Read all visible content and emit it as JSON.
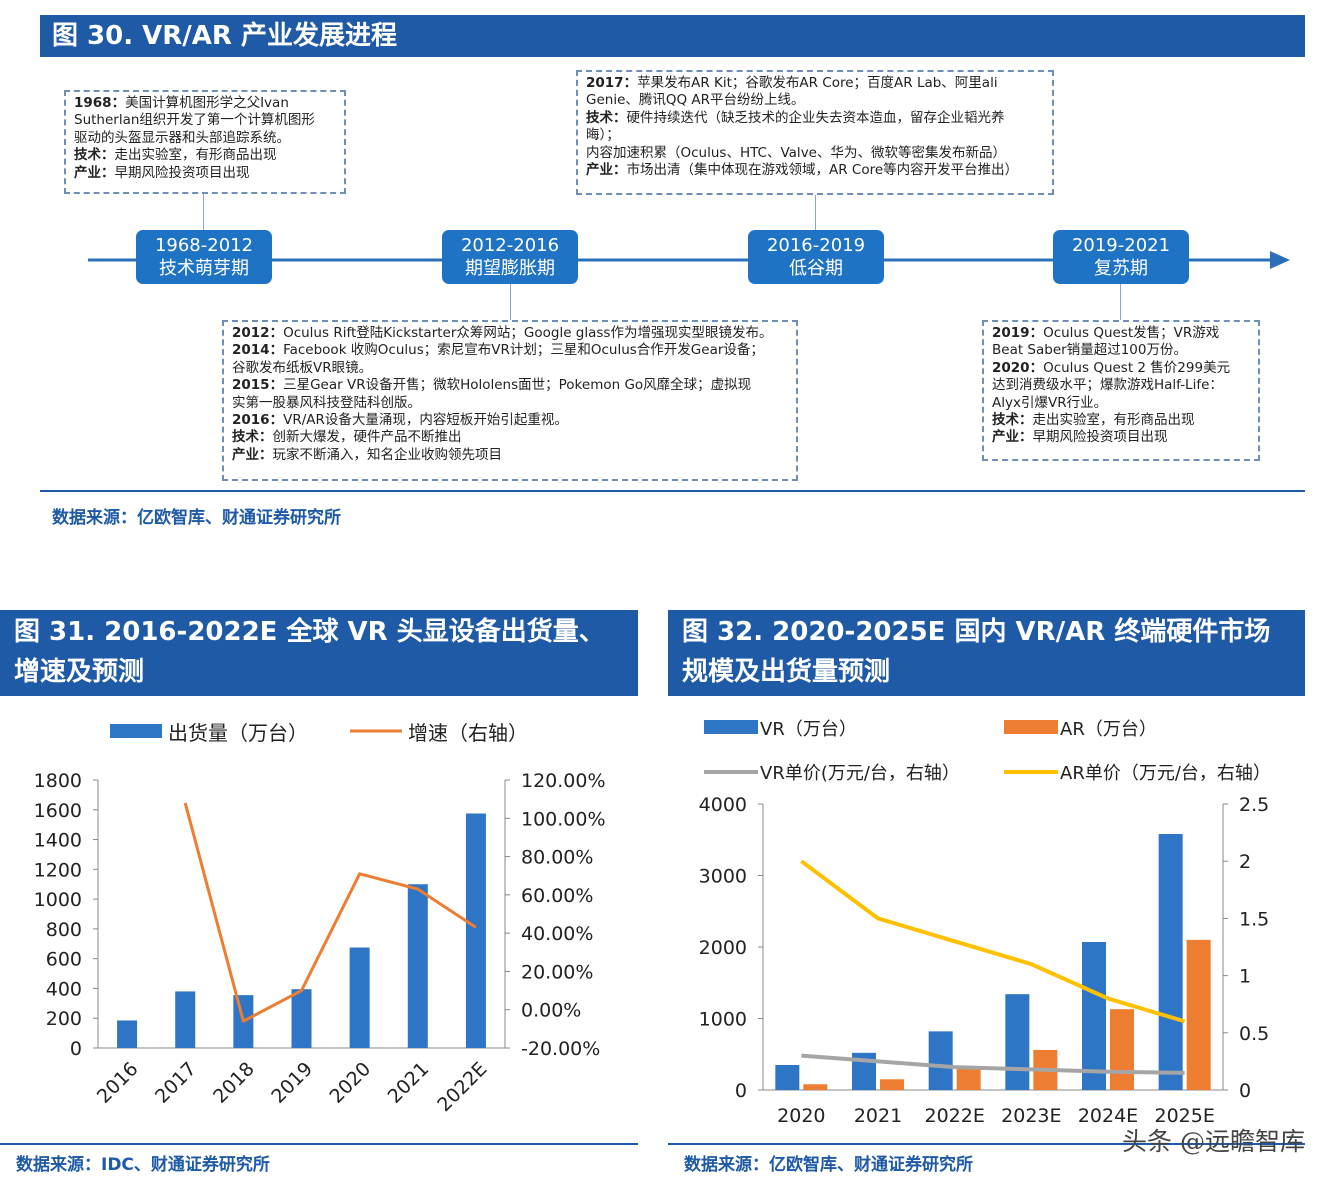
{
  "fig30": {
    "title": "图 30. VR/AR 产业发展进程",
    "phases": [
      {
        "years": "1968-2012",
        "name": "技术萌芽期"
      },
      {
        "years": "2012-2016",
        "name": "期望膨胀期"
      },
      {
        "years": "2016-2019",
        "name": "低谷期"
      },
      {
        "years": "2019-2021",
        "name": "复苏期"
      }
    ],
    "boxes": {
      "b1968": [
        {
          "label": "1968：",
          "text": "美国计算机图形学之父Ivan"
        },
        {
          "label": "",
          "text": "Sutherlan组织开发了第一个计算机图形"
        },
        {
          "label": "",
          "text": "驱动的头盔显示器和头部追踪系统。"
        },
        {
          "label": "技术：",
          "text": "走出实验室，有形商品出现"
        },
        {
          "label": "产业：",
          "text": "早期风险投资项目出现"
        }
      ],
      "b2012": [
        {
          "label": "2012：",
          "text": "Oculus Rift登陆Kickstarter众筹网站；Google glass作为增强现实型眼镜发布。"
        },
        {
          "label": "2014：",
          "text": "Facebook 收购Oculus；索尼宣布VR计划；三星和Oculus合作开发Gear设备；"
        },
        {
          "label": "",
          "text": "谷歌发布纸板VR眼镜。"
        },
        {
          "label": "2015：",
          "text": "三星Gear VR设备开售；微软Hololens面世；Pokemon Go风靡全球；虚拟现"
        },
        {
          "label": "",
          "text": "实第一股暴风科技登陆科创版。"
        },
        {
          "label": "2016：",
          "text": "VR/AR设备大量涌现，内容短板开始引起重视。"
        },
        {
          "label": "技术：",
          "text": "创新大爆发，硬件产品不断推出"
        },
        {
          "label": "产业：",
          "text": "玩家不断涌入，知名企业收购领先项目"
        }
      ],
      "b2017": [
        {
          "label": "2017：",
          "text": "苹果发布AR Kit；谷歌发布AR Core；百度AR Lab、阿里ali"
        },
        {
          "label": "",
          "text": "Genie、腾讯QQ AR平台纷纷上线。"
        },
        {
          "label": "技术：",
          "text": "硬件持续迭代（缺乏技术的企业失去资本造血，留存企业韬光养"
        },
        {
          "label": "",
          "text": "晦）；"
        },
        {
          "label": "",
          "text": "内容加速积累（Oculus、HTC、Valve、华为、微软等密集发布新品）"
        },
        {
          "label": "产业：",
          "text": "市场出清（集中体现在游戏领域，AR Core等内容开发平台推出）"
        }
      ],
      "b2019": [
        {
          "label": "2019：",
          "text": "Oculus Quest发售；VR游戏"
        },
        {
          "label": "",
          "text": "Beat Saber销量超过100万份。"
        },
        {
          "label": "2020：",
          "text": "Oculus Quest 2 售价299美元"
        },
        {
          "label": "",
          "text": "达到消费级水平；爆款游戏Half-Life："
        },
        {
          "label": "",
          "text": "Alyx引爆VR行业。"
        },
        {
          "label": "技术：",
          "text": "走出实验室，有形商品出现"
        },
        {
          "label": "产业：",
          "text": "早期风险投资项目出现"
        }
      ]
    },
    "source": "数据来源：亿欧智库、财通证券研究所"
  },
  "fig31": {
    "title_line1": "图 31. 2016-2022E 全球 VR 头显设备出货量、",
    "title_line2": "增速及预测",
    "source": "数据来源：IDC、财通证券研究所"
  },
  "fig32": {
    "title_line1": "图 32. 2020-2025E 国内 VR/AR 终端硬件市场",
    "title_line2": "规模及出货量预测",
    "source": "数据来源：亿欧智库、财通证券研究所"
  },
  "watermark": "头条 @远瞻智库",
  "colors": {
    "brand_blue": "#1f5aa6",
    "bar_blue": "#2e75c6",
    "orange": "#ed7d31",
    "gray": "#a5a5a5",
    "yellow": "#ffc000"
  },
  "chart_data": [
    {
      "type": "bar",
      "categories": [
        "2016",
        "2017",
        "2018",
        "2019",
        "2020",
        "2021",
        "2022E"
      ],
      "series": [
        {
          "name": "出货量（万台）",
          "type": "bar",
          "axis": "left",
          "values": [
            185,
            380,
            355,
            395,
            675,
            1100,
            1575
          ]
        },
        {
          "name": "增速（右轴）",
          "type": "line",
          "axis": "right",
          "values": [
            null,
            108,
            -6,
            10,
            71,
            63,
            43
          ]
        }
      ],
      "ylim": [
        0,
        1800
      ],
      "yticks": [
        0,
        200,
        400,
        600,
        800,
        1000,
        1200,
        1400,
        1600,
        1800
      ],
      "y2lim": [
        -20,
        120
      ],
      "y2ticks": [
        "-20.00%",
        "0.00%",
        "20.00%",
        "40.00%",
        "60.00%",
        "80.00%",
        "100.00%",
        "120.00%"
      ],
      "legend": "top",
      "grid": false
    },
    {
      "type": "bar",
      "categories": [
        "2020",
        "2021",
        "2022E",
        "2023E",
        "2024E",
        "2025E"
      ],
      "series": [
        {
          "name": "VR（万台）",
          "type": "bar",
          "axis": "left",
          "values": [
            350,
            520,
            820,
            1340,
            2070,
            3580
          ]
        },
        {
          "name": "AR（万台）",
          "type": "bar",
          "axis": "left",
          "values": [
            80,
            150,
            300,
            560,
            1130,
            2100
          ]
        },
        {
          "name": "VR单价(万元/台，右轴）",
          "type": "line",
          "axis": "right",
          "values": [
            0.3,
            0.25,
            0.2,
            0.18,
            0.16,
            0.15
          ]
        },
        {
          "name": "AR单价（万元/台，右轴）",
          "type": "line",
          "axis": "right",
          "values": [
            2.0,
            1.5,
            1.3,
            1.1,
            0.8,
            0.6
          ]
        }
      ],
      "ylim": [
        0,
        4000
      ],
      "yticks": [
        0,
        1000,
        2000,
        3000,
        4000
      ],
      "y2lim": [
        0,
        2.5
      ],
      "y2ticks": [
        "0",
        "0.5",
        "1",
        "1.5",
        "2",
        "2.5"
      ],
      "legend": "top",
      "grid": false
    }
  ]
}
